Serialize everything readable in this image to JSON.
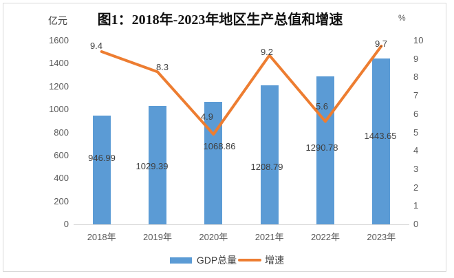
{
  "chart_data": {
    "type": "bar",
    "title": "图1：2018年-2023年地区生产总值和增速",
    "categories": [
      "2018年",
      "2019年",
      "2020年",
      "2021年",
      "2022年",
      "2023年"
    ],
    "series": [
      {
        "name": "GDP总量",
        "type": "bar",
        "axis": "left",
        "color": "#5b9bd5",
        "values": [
          946.99,
          1029.39,
          1068.86,
          1208.79,
          1290.78,
          1443.65
        ],
        "data_labels": [
          "946.99",
          "1029.39",
          "1068.86",
          "1208.79",
          "1290.78",
          "1443.65"
        ]
      },
      {
        "name": "增速",
        "type": "line",
        "axis": "right",
        "color": "#ed7d31",
        "values": [
          9.4,
          8.3,
          4.9,
          9.2,
          5.6,
          9.7
        ],
        "data_labels": [
          "9.4",
          "8.3",
          "4.9",
          "9.2",
          "5.6",
          "9.7"
        ]
      }
    ],
    "left_axis": {
      "label": "亿元",
      "min": 0,
      "max": 1600,
      "step": 200,
      "ticks": [
        "0",
        "200",
        "400",
        "600",
        "800",
        "1000",
        "1200",
        "1400",
        "1600"
      ]
    },
    "right_axis": {
      "label": "%",
      "min": 0,
      "max": 10,
      "step": 1,
      "ticks": [
        "0",
        "1",
        "2",
        "3",
        "4",
        "5",
        "6",
        "7",
        "8",
        "9",
        "10"
      ]
    },
    "legend": {
      "position": "bottom",
      "entries": [
        "GDP总量",
        "增速"
      ]
    },
    "grid": false,
    "colors": {
      "bar": "#5b9bd5",
      "line": "#ed7d31",
      "axis_line": "#d9d9d9",
      "tick_text": "#595959",
      "label_text": "#3f3f3f"
    }
  }
}
